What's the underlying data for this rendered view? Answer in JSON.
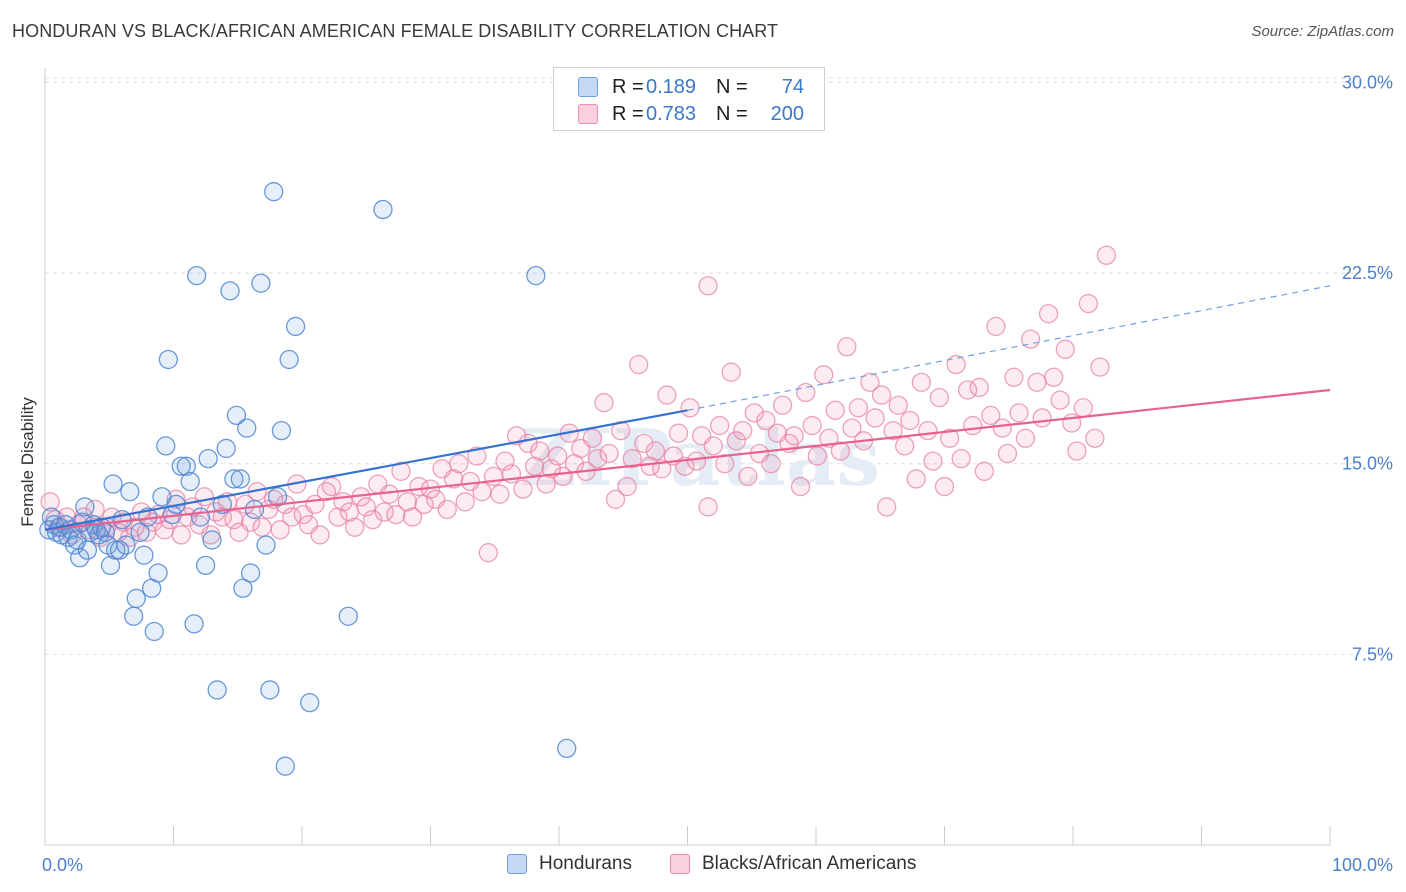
{
  "title": "HONDURAN VS BLACK/AFRICAN AMERICAN FEMALE DISABILITY CORRELATION CHART",
  "source": "Source: ZipAtlas.com",
  "watermark": "ZIPatlas",
  "legend": {
    "rows": [
      {
        "r_label": "R =",
        "r_value": "0.189",
        "n_label": "N =",
        "n_value": "74",
        "color": "#6fa0e0"
      },
      {
        "r_label": "R =",
        "r_value": "0.783",
        "n_label": "N =",
        "n_value": "200",
        "color": "#f090b0"
      }
    ]
  },
  "chart_data": {
    "type": "scatter",
    "title": "HONDURAN VS BLACK/AFRICAN AMERICAN FEMALE DISABILITY CORRELATION CHART",
    "xlabel": "",
    "ylabel": "Female Disability",
    "xlim": [
      0,
      100
    ],
    "ylim": [
      0,
      32
    ],
    "x_tick_labels": [
      "0.0%",
      "100.0%"
    ],
    "y_ticks": [
      7.5,
      15.0,
      22.5,
      30.0
    ],
    "y_tick_labels": [
      "7.5%",
      "15.0%",
      "22.5%",
      "30.0%"
    ],
    "grid": true,
    "legend_position": "top-center",
    "series": [
      {
        "name": "Hondurans",
        "color": "#6fa0e0",
        "trend": {
          "x": [
            0,
            50
          ],
          "y": [
            12.4,
            17.1
          ],
          "extended_to": [
            100,
            22.0
          ]
        },
        "points": [
          [
            0.3,
            12.4
          ],
          [
            0.5,
            12.9
          ],
          [
            0.7,
            12.6
          ],
          [
            0.9,
            12.3
          ],
          [
            1.1,
            12.5
          ],
          [
            1.3,
            12.2
          ],
          [
            1.6,
            12.6
          ],
          [
            1.8,
            12.1
          ],
          [
            2.0,
            12.4
          ],
          [
            2.3,
            11.8
          ],
          [
            2.5,
            12.0
          ],
          [
            2.7,
            11.3
          ],
          [
            2.9,
            12.7
          ],
          [
            3.1,
            13.3
          ],
          [
            3.3,
            11.6
          ],
          [
            3.5,
            12.3
          ],
          [
            3.8,
            12.6
          ],
          [
            4.0,
            12.4
          ],
          [
            4.2,
            12.2
          ],
          [
            4.4,
            12.5
          ],
          [
            4.7,
            12.3
          ],
          [
            4.9,
            11.8
          ],
          [
            5.1,
            11.0
          ],
          [
            5.3,
            14.2
          ],
          [
            5.5,
            11.6
          ],
          [
            5.8,
            11.6
          ],
          [
            6.0,
            12.8
          ],
          [
            6.3,
            11.8
          ],
          [
            6.6,
            13.9
          ],
          [
            6.9,
            9.0
          ],
          [
            7.1,
            9.7
          ],
          [
            7.4,
            12.3
          ],
          [
            7.7,
            11.4
          ],
          [
            8.0,
            12.9
          ],
          [
            8.3,
            10.1
          ],
          [
            8.5,
            8.4
          ],
          [
            8.8,
            10.7
          ],
          [
            9.1,
            13.7
          ],
          [
            9.4,
            15.7
          ],
          [
            9.6,
            19.1
          ],
          [
            9.9,
            13.0
          ],
          [
            10.2,
            13.4
          ],
          [
            10.6,
            14.9
          ],
          [
            11.0,
            14.9
          ],
          [
            11.3,
            14.3
          ],
          [
            11.6,
            8.7
          ],
          [
            11.8,
            22.4
          ],
          [
            12.1,
            12.9
          ],
          [
            12.5,
            11.0
          ],
          [
            12.7,
            15.2
          ],
          [
            13.0,
            12.0
          ],
          [
            13.4,
            6.1
          ],
          [
            13.8,
            13.4
          ],
          [
            14.1,
            15.6
          ],
          [
            14.4,
            21.8
          ],
          [
            14.7,
            14.4
          ],
          [
            14.9,
            16.9
          ],
          [
            15.2,
            14.4
          ],
          [
            15.4,
            10.1
          ],
          [
            15.7,
            16.4
          ],
          [
            16.0,
            10.7
          ],
          [
            16.3,
            13.2
          ],
          [
            16.8,
            22.1
          ],
          [
            17.2,
            11.8
          ],
          [
            17.5,
            6.1
          ],
          [
            17.8,
            25.7
          ],
          [
            18.1,
            13.7
          ],
          [
            18.4,
            16.3
          ],
          [
            18.7,
            3.1
          ],
          [
            19.0,
            19.1
          ],
          [
            19.5,
            20.4
          ],
          [
            20.6,
            5.6
          ],
          [
            26.3,
            25.0
          ],
          [
            38.2,
            22.4
          ],
          [
            23.6,
            9.0
          ],
          [
            40.6,
            3.8
          ]
        ]
      },
      {
        "name": "Blacks/African Americans",
        "color": "#f090b0",
        "trend": {
          "x": [
            0,
            100
          ],
          "y": [
            12.4,
            17.9
          ]
        },
        "points": [
          [
            0.4,
            13.5
          ],
          [
            0.8,
            12.8
          ],
          [
            1.2,
            12.5
          ],
          [
            1.7,
            12.9
          ],
          [
            2.1,
            12.2
          ],
          [
            2.6,
            12.6
          ],
          [
            3.0,
            12.9
          ],
          [
            3.4,
            12.4
          ],
          [
            3.9,
            13.2
          ],
          [
            4.3,
            12.1
          ],
          [
            4.8,
            12.5
          ],
          [
            5.2,
            12.9
          ],
          [
            5.7,
            12.3
          ],
          [
            6.1,
            12.7
          ],
          [
            6.6,
            12.1
          ],
          [
            7.0,
            12.5
          ],
          [
            7.5,
            13.1
          ],
          [
            7.9,
            12.3
          ],
          [
            8.4,
            12.7
          ],
          [
            8.8,
            13.0
          ],
          [
            9.3,
            12.4
          ],
          [
            9.7,
            12.8
          ],
          [
            10.2,
            13.6
          ],
          [
            10.6,
            12.2
          ],
          [
            11.1,
            12.9
          ],
          [
            11.5,
            13.3
          ],
          [
            12.0,
            12.6
          ],
          [
            12.4,
            13.7
          ],
          [
            12.9,
            12.2
          ],
          [
            13.3,
            13.1
          ],
          [
            13.8,
            12.9
          ],
          [
            14.2,
            13.5
          ],
          [
            14.7,
            12.8
          ],
          [
            15.1,
            12.3
          ],
          [
            15.6,
            13.4
          ],
          [
            16.0,
            12.7
          ],
          [
            16.5,
            13.9
          ],
          [
            16.9,
            12.5
          ],
          [
            17.4,
            13.2
          ],
          [
            17.8,
            13.6
          ],
          [
            18.3,
            12.4
          ],
          [
            18.7,
            13.4
          ],
          [
            19.2,
            12.9
          ],
          [
            19.6,
            14.2
          ],
          [
            20.1,
            13.0
          ],
          [
            20.5,
            12.6
          ],
          [
            21.0,
            13.4
          ],
          [
            21.4,
            12.2
          ],
          [
            21.9,
            13.9
          ],
          [
            22.3,
            14.1
          ],
          [
            22.8,
            12.9
          ],
          [
            23.2,
            13.5
          ],
          [
            23.7,
            13.1
          ],
          [
            24.1,
            12.5
          ],
          [
            24.6,
            13.7
          ],
          [
            25.0,
            13.3
          ],
          [
            25.5,
            12.8
          ],
          [
            25.9,
            14.2
          ],
          [
            26.4,
            13.1
          ],
          [
            26.8,
            13.8
          ],
          [
            27.3,
            13.0
          ],
          [
            27.7,
            14.7
          ],
          [
            28.2,
            13.5
          ],
          [
            28.6,
            12.9
          ],
          [
            29.1,
            14.1
          ],
          [
            29.5,
            13.4
          ],
          [
            30.0,
            14.0
          ],
          [
            30.4,
            13.6
          ],
          [
            30.9,
            14.8
          ],
          [
            31.3,
            13.2
          ],
          [
            31.8,
            14.4
          ],
          [
            32.2,
            15.0
          ],
          [
            32.7,
            13.5
          ],
          [
            33.1,
            14.3
          ],
          [
            33.6,
            15.3
          ],
          [
            34.0,
            13.9
          ],
          [
            34.5,
            11.5
          ],
          [
            34.9,
            14.5
          ],
          [
            35.4,
            13.8
          ],
          [
            35.8,
            15.1
          ],
          [
            36.3,
            14.6
          ],
          [
            36.7,
            16.1
          ],
          [
            37.2,
            14.0
          ],
          [
            37.6,
            15.8
          ],
          [
            38.1,
            14.9
          ],
          [
            38.5,
            15.5
          ],
          [
            39.0,
            14.2
          ],
          [
            39.4,
            14.8
          ],
          [
            39.9,
            15.3
          ],
          [
            40.3,
            14.5
          ],
          [
            40.8,
            16.2
          ],
          [
            41.2,
            15.0
          ],
          [
            41.7,
            15.6
          ],
          [
            42.1,
            14.7
          ],
          [
            42.6,
            16.0
          ],
          [
            43.0,
            15.2
          ],
          [
            43.5,
            17.4
          ],
          [
            43.9,
            15.4
          ],
          [
            44.4,
            13.6
          ],
          [
            44.8,
            16.3
          ],
          [
            45.3,
            14.1
          ],
          [
            45.7,
            15.2
          ],
          [
            46.2,
            18.9
          ],
          [
            46.6,
            15.8
          ],
          [
            47.1,
            14.9
          ],
          [
            47.5,
            15.5
          ],
          [
            48.0,
            14.8
          ],
          [
            48.4,
            17.7
          ],
          [
            48.9,
            15.3
          ],
          [
            49.3,
            16.2
          ],
          [
            49.8,
            14.9
          ],
          [
            50.2,
            17.2
          ],
          [
            50.7,
            15.1
          ],
          [
            51.1,
            16.1
          ],
          [
            51.6,
            13.3
          ],
          [
            52.0,
            15.7
          ],
          [
            52.5,
            16.5
          ],
          [
            52.9,
            15.0
          ],
          [
            53.4,
            18.6
          ],
          [
            53.8,
            15.9
          ],
          [
            54.3,
            16.3
          ],
          [
            54.7,
            14.5
          ],
          [
            55.2,
            17.0
          ],
          [
            55.6,
            15.4
          ],
          [
            56.1,
            16.7
          ],
          [
            56.5,
            15.0
          ],
          [
            57.0,
            16.2
          ],
          [
            57.4,
            17.3
          ],
          [
            57.9,
            15.8
          ],
          [
            58.3,
            16.1
          ],
          [
            58.8,
            14.1
          ],
          [
            59.2,
            17.8
          ],
          [
            59.7,
            16.5
          ],
          [
            60.1,
            15.3
          ],
          [
            60.6,
            18.5
          ],
          [
            61.0,
            16.0
          ],
          [
            61.5,
            17.1
          ],
          [
            61.9,
            15.5
          ],
          [
            62.4,
            19.6
          ],
          [
            62.8,
            16.4
          ],
          [
            63.3,
            17.2
          ],
          [
            63.7,
            15.9
          ],
          [
            64.2,
            18.2
          ],
          [
            64.6,
            16.8
          ],
          [
            65.1,
            17.7
          ],
          [
            65.5,
            13.3
          ],
          [
            66.0,
            16.3
          ],
          [
            66.4,
            17.3
          ],
          [
            66.9,
            15.7
          ],
          [
            67.3,
            16.7
          ],
          [
            67.8,
            14.4
          ],
          [
            68.2,
            18.2
          ],
          [
            68.7,
            16.3
          ],
          [
            69.1,
            15.1
          ],
          [
            69.6,
            17.6
          ],
          [
            70.0,
            14.1
          ],
          [
            70.4,
            16.0
          ],
          [
            70.9,
            18.9
          ],
          [
            71.3,
            15.2
          ],
          [
            71.8,
            17.9
          ],
          [
            72.2,
            16.5
          ],
          [
            72.7,
            18.0
          ],
          [
            73.1,
            14.7
          ],
          [
            73.6,
            16.9
          ],
          [
            74.0,
            20.4
          ],
          [
            74.5,
            16.4
          ],
          [
            74.9,
            15.4
          ],
          [
            75.4,
            18.4
          ],
          [
            75.8,
            17.0
          ],
          [
            76.3,
            16.0
          ],
          [
            76.7,
            19.9
          ],
          [
            77.2,
            18.2
          ],
          [
            77.6,
            16.8
          ],
          [
            78.1,
            20.9
          ],
          [
            78.5,
            18.4
          ],
          [
            79.0,
            17.5
          ],
          [
            79.4,
            19.5
          ],
          [
            79.9,
            16.6
          ],
          [
            80.3,
            15.5
          ],
          [
            80.8,
            17.2
          ],
          [
            81.2,
            21.3
          ],
          [
            81.7,
            16.0
          ],
          [
            82.1,
            18.8
          ],
          [
            82.6,
            23.2
          ],
          [
            51.6,
            22.0
          ]
        ]
      }
    ]
  },
  "bottom_legend": [
    {
      "label": "Hondurans",
      "color": "#6fa0e0"
    },
    {
      "label": "Blacks/African Americans",
      "color": "#f090b0"
    }
  ]
}
